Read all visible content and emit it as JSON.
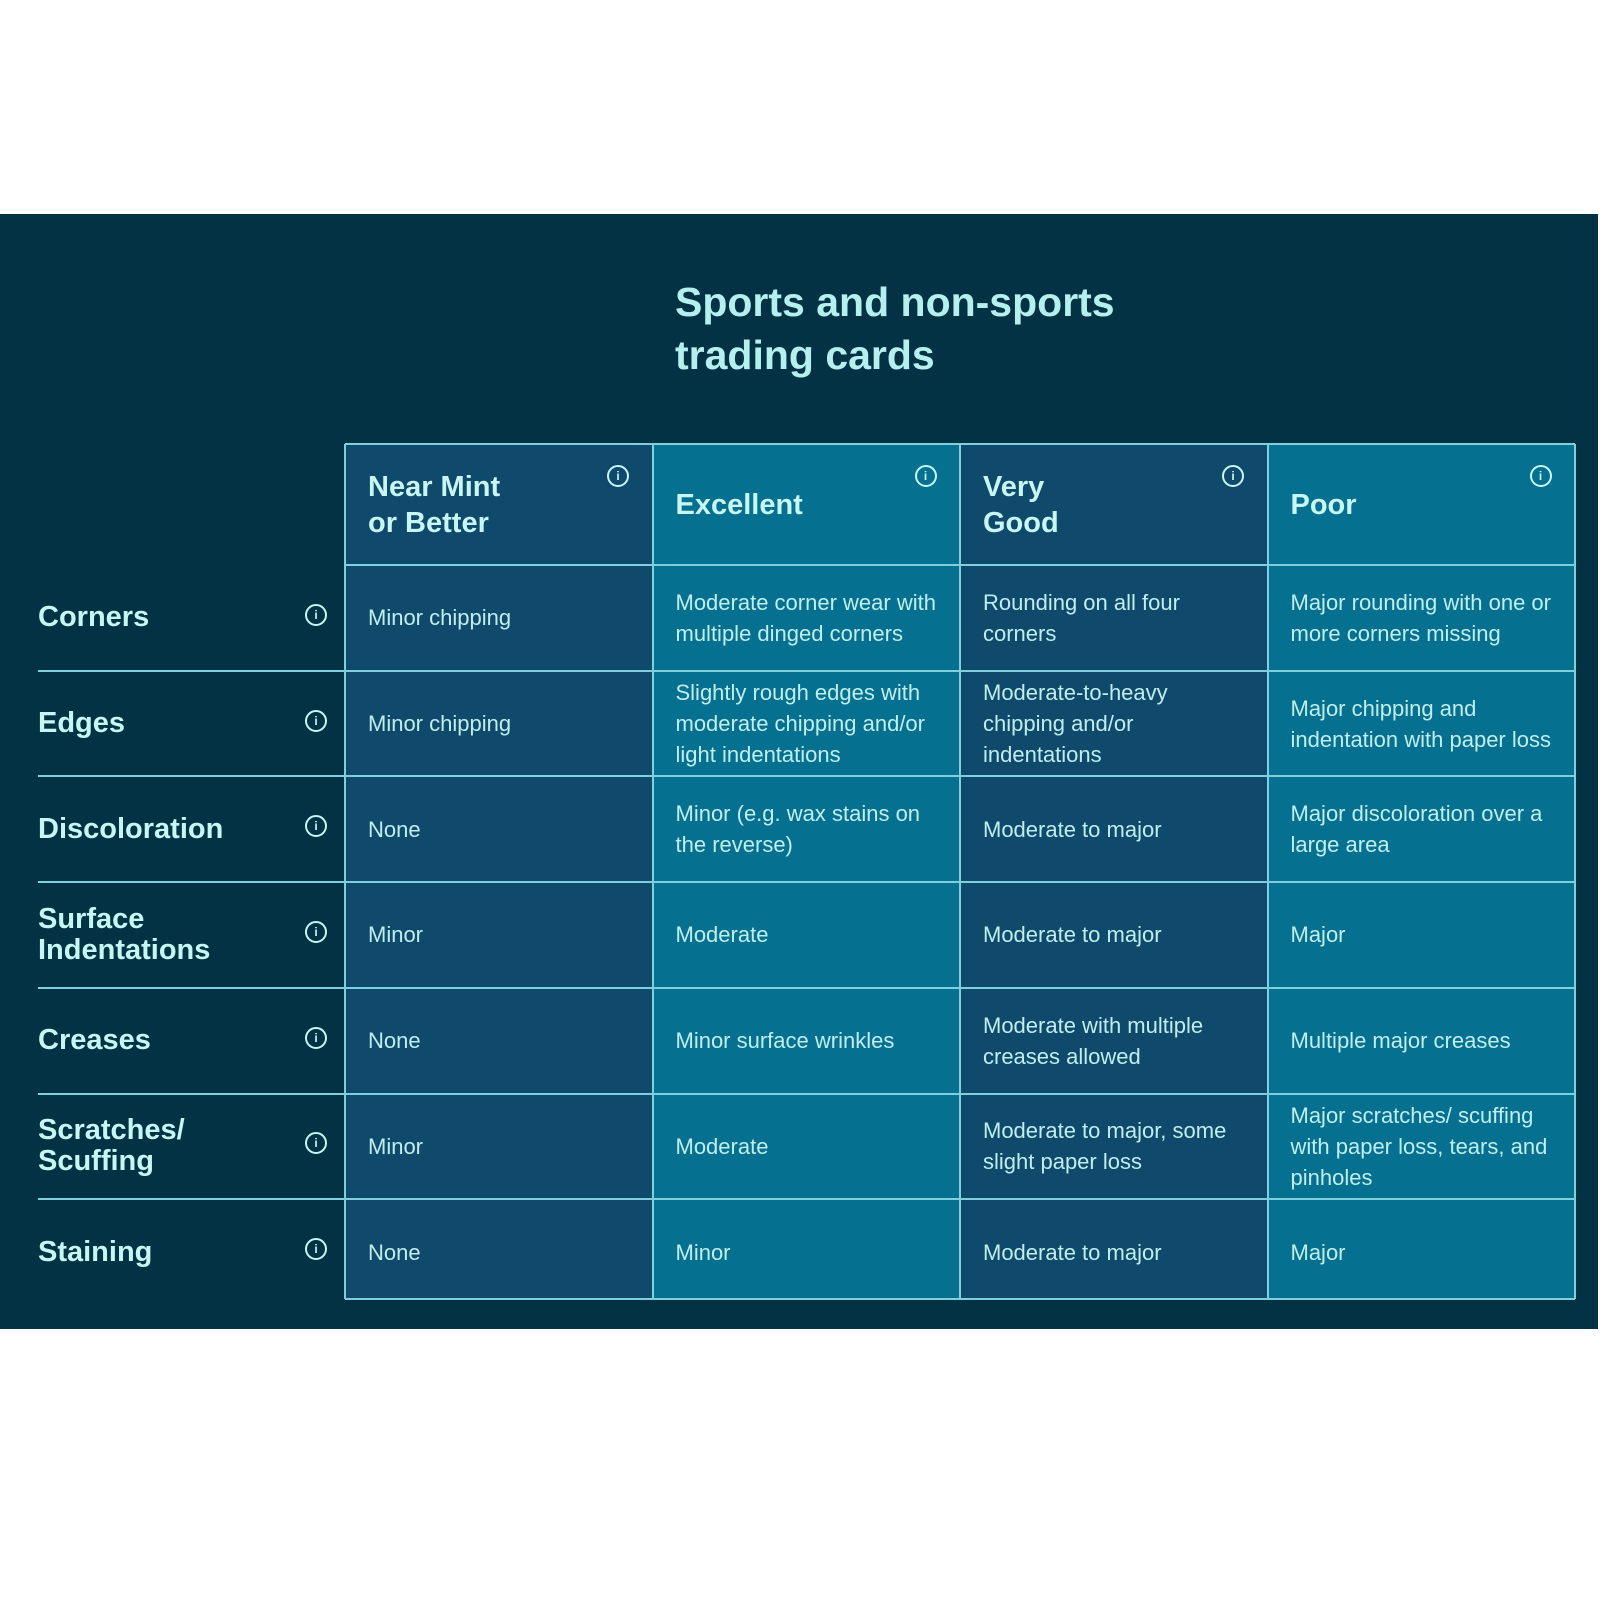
{
  "title": [
    "Sports and non-sports",
    "trading cards"
  ],
  "colors": {
    "background": "#033245",
    "column_dark": "#0f4a6c",
    "column_light": "#05708f",
    "border": "#7fcfdc",
    "text": "#c8f6f2"
  },
  "columns": [
    {
      "label": "Near Mint\nor Better",
      "icon": "info-icon"
    },
    {
      "label": "Excellent",
      "icon": "info-icon"
    },
    {
      "label": "Very\nGood",
      "icon": "info-icon"
    },
    {
      "label": "Poor",
      "icon": "info-icon"
    }
  ],
  "rows": [
    {
      "label": "Corners",
      "icon": "info-icon",
      "cells": [
        "Minor chipping",
        "Moderate corner wear with multiple dinged corners",
        "Rounding on all four corners",
        "Major rounding with one or more corners missing"
      ]
    },
    {
      "label": "Edges",
      "icon": "info-icon",
      "cells": [
        "Minor chipping",
        "Slightly rough edges with moderate chipping and/or light indentations",
        "Moderate-to-heavy chipping and/or indentations",
        "Major chipping and indentation with paper loss"
      ]
    },
    {
      "label": "Discoloration",
      "icon": "info-icon",
      "cells": [
        "None",
        "Minor (e.g. wax stains on the reverse)",
        "Moderate to major",
        "Major discoloration over a large area"
      ]
    },
    {
      "label": "Surface Indentations",
      "icon": "info-icon",
      "cells": [
        "Minor",
        "Moderate",
        "Moderate to major",
        "Major"
      ]
    },
    {
      "label": "Creases",
      "icon": "info-icon",
      "cells": [
        "None",
        "Minor surface wrinkles",
        "Moderate with multiple creases allowed",
        "Multiple major creases"
      ]
    },
    {
      "label": "Scratches/ Scuffing",
      "icon": "info-icon",
      "cells": [
        "Minor",
        "Moderate",
        "Moderate to major, some slight paper loss",
        "Major scratches/ scuffing with paper loss, tears, and pinholes"
      ]
    },
    {
      "label": "Staining",
      "icon": "info-icon",
      "cells": [
        "None",
        "Minor",
        "Moderate to major",
        "Major"
      ]
    }
  ]
}
